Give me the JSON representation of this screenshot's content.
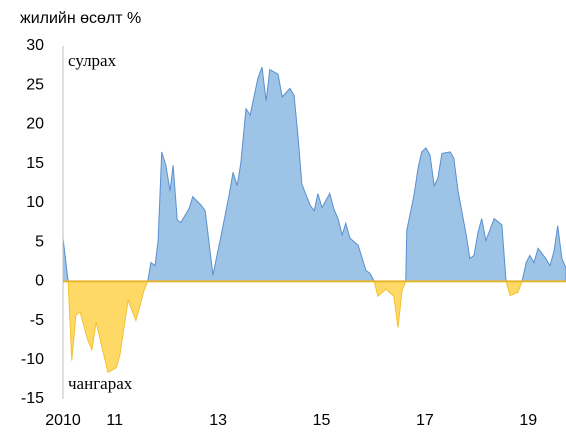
{
  "chart_data": {
    "type": "area",
    "ylabel": "жилийн өсөлт %",
    "x": [
      2010.0,
      2010.1,
      2010.17,
      2010.25,
      2010.33,
      2010.48,
      2010.56,
      2010.64,
      2010.79,
      2010.87,
      2011.03,
      2011.1,
      2011.26,
      2011.41,
      2011.57,
      2011.64,
      2011.7,
      2011.78,
      2011.84,
      2011.91,
      2011.99,
      2012.07,
      2012.13,
      2012.21,
      2012.28,
      2012.44,
      2012.51,
      2012.67,
      2012.75,
      2012.82,
      2012.9,
      2013.06,
      2013.21,
      2013.29,
      2013.37,
      2013.44,
      2013.54,
      2013.62,
      2013.77,
      2013.85,
      2013.93,
      2014.0,
      2014.16,
      2014.24,
      2014.39,
      2014.47,
      2014.55,
      2014.62,
      2014.78,
      2014.86,
      2014.93,
      2015.01,
      2015.16,
      2015.24,
      2015.32,
      2015.4,
      2015.47,
      2015.55,
      2015.71,
      2015.86,
      2015.94,
      2016.02,
      2016.09,
      2016.25,
      2016.4,
      2016.48,
      2016.56,
      2016.63,
      2016.65,
      2016.79,
      2016.87,
      2016.94,
      2017.02,
      2017.1,
      2017.18,
      2017.25,
      2017.33,
      2017.49,
      2017.56,
      2017.64,
      2017.8,
      2017.87,
      2017.95,
      2018.03,
      2018.1,
      2018.18,
      2018.34,
      2018.49,
      2018.57,
      2018.65,
      2018.8,
      2018.88,
      2018.96,
      2019.03,
      2019.11,
      2019.19,
      2019.34,
      2019.42,
      2019.5,
      2019.57,
      2019.65,
      2019.73
    ],
    "series": [
      {
        "name": "сулрах",
        "color": "#9dc3e6",
        "line_color": "#5b8fcf",
        "label_color": "#4472c4",
        "values": [
          5.5,
          0,
          0,
          0,
          0,
          0,
          0,
          0,
          0,
          0,
          0,
          0,
          0,
          0,
          0,
          0,
          2.4,
          2.0,
          5.2,
          16.5,
          14.8,
          11.5,
          14.8,
          7.8,
          7.5,
          9.3,
          10.8,
          9.7,
          9.0,
          5.2,
          0.8,
          5.9,
          10.9,
          13.9,
          12.2,
          15.1,
          22.0,
          21.2,
          25.9,
          27.3,
          23.0,
          27.0,
          26.4,
          23.5,
          24.6,
          23.7,
          18.2,
          12.4,
          9.7,
          9.0,
          11.2,
          9.4,
          11.2,
          9.2,
          8.0,
          5.9,
          7.4,
          5.5,
          4.6,
          1.4,
          1.0,
          0,
          0,
          0,
          0,
          0,
          0,
          0,
          6.5,
          11.0,
          14.5,
          16.5,
          17.0,
          16.1,
          12.2,
          13.1,
          16.3,
          16.5,
          15.7,
          11.6,
          5.9,
          2.9,
          3.3,
          6.3,
          8.0,
          5.2,
          8.0,
          7.2,
          0,
          0,
          0,
          0,
          2.4,
          3.3,
          2.4,
          4.2,
          2.9,
          2.0,
          3.9,
          7.1,
          2.9,
          1.7
        ]
      },
      {
        "name": "чангарах",
        "color": "#ffd966",
        "line_color": "#f2c12e",
        "label_color": "#843c0c",
        "values": [
          0,
          0,
          -10.1,
          -4.3,
          -3.9,
          -7.5,
          -8.7,
          -5.2,
          -9.4,
          -11.6,
          -11.0,
          -9.4,
          -2.4,
          -5.0,
          -1.1,
          0,
          0,
          0,
          0,
          0,
          0,
          0,
          0,
          0,
          0,
          0,
          0,
          0,
          0,
          0,
          0,
          0,
          0,
          0,
          0,
          0,
          0,
          0,
          0,
          0,
          0,
          0,
          0,
          0,
          0,
          0,
          0,
          0,
          0,
          0,
          0,
          0,
          0,
          0,
          0,
          0,
          0,
          0,
          0,
          0,
          0,
          0,
          -1.9,
          -1.0,
          -1.9,
          -5.9,
          -1.1,
          0,
          0,
          0,
          0,
          0,
          0,
          0,
          0,
          0,
          0,
          0,
          0,
          0,
          0,
          0,
          0,
          0,
          0,
          0,
          0,
          0,
          0,
          -1.8,
          -1.4,
          0,
          0,
          0,
          0,
          0,
          0,
          0,
          0,
          0,
          0,
          0
        ]
      }
    ],
    "xlim": [
      2010,
      2019.73
    ],
    "xticks": [
      2010,
      {
        "value": 2011,
        "label": "11"
      },
      {
        "value": 2013,
        "label": "13"
      },
      {
        "value": 2015,
        "label": "15"
      },
      {
        "value": 2017,
        "label": "17"
      },
      {
        "value": 2019,
        "label": "19"
      }
    ],
    "ylim": [
      -15,
      30
    ],
    "yticks": [
      -15,
      -10,
      -5,
      0,
      5,
      10,
      15,
      20,
      25,
      30
    ],
    "grid": false
  }
}
